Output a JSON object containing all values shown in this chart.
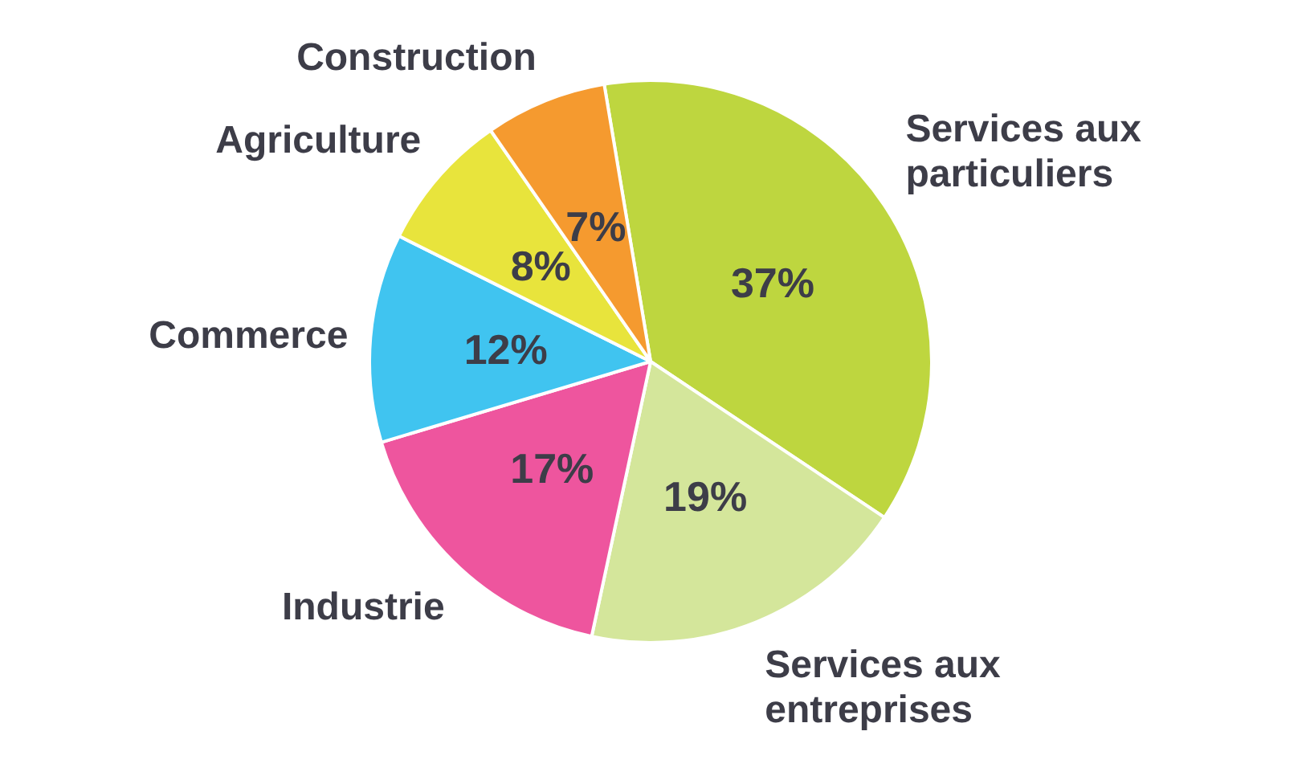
{
  "chart_data": {
    "type": "pie",
    "categories": [
      "Services aux particuliers",
      "Services aux entreprises",
      "Industrie",
      "Commerce",
      "Agriculture",
      "Construction"
    ],
    "values": [
      37,
      19,
      17,
      12,
      8,
      7
    ],
    "colors": [
      "#bed63f",
      "#d4e69b",
      "#ee559e",
      "#40c4f0",
      "#e8e43c",
      "#f59a2f"
    ],
    "value_labels": [
      "37%",
      "19%",
      "17%",
      "12%",
      "8%",
      "7%"
    ],
    "legend": false
  }
}
